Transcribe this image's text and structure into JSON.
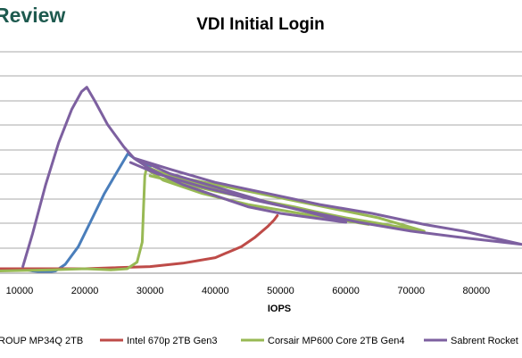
{
  "header": {
    "brand_text": "Review",
    "title": "VDI Initial Login"
  },
  "chart_data": {
    "type": "line",
    "title": "VDI Initial Login",
    "xlabel": "IOPS",
    "ylabel": "",
    "x_ticks": [
      "10000",
      "20000",
      "30000",
      "40000",
      "50000",
      "60000",
      "70000",
      "80000"
    ],
    "xlim": [
      7000,
      87000
    ],
    "ylim": [
      0,
      1
    ],
    "grid": true,
    "legend_position": "bottom",
    "series": [
      {
        "name": "ROUP MP34Q 2TB",
        "color": "#4a7ebb",
        "points": [
          [
            7000,
            0.02
          ],
          [
            10000,
            0.02
          ],
          [
            12000,
            0.01
          ],
          [
            14000,
            0.005
          ],
          [
            15500,
            0.01
          ],
          [
            17000,
            0.04
          ],
          [
            19000,
            0.12
          ],
          [
            21000,
            0.24
          ],
          [
            23000,
            0.36
          ],
          [
            25000,
            0.46
          ],
          [
            26600,
            0.54
          ],
          [
            28000,
            0.51
          ],
          [
            30000,
            0.48
          ]
        ]
      },
      {
        "name": "Intel 670p 2TB Gen3",
        "color": "#be4b48",
        "points": [
          [
            7000,
            0.02
          ],
          [
            10000,
            0.02
          ],
          [
            15000,
            0.02
          ],
          [
            20000,
            0.02
          ],
          [
            25000,
            0.025
          ],
          [
            30000,
            0.03
          ],
          [
            35000,
            0.045
          ],
          [
            40000,
            0.07
          ],
          [
            44000,
            0.12
          ],
          [
            46000,
            0.16
          ],
          [
            48000,
            0.21
          ],
          [
            49000,
            0.24
          ],
          [
            49500,
            0.26
          ]
        ]
      },
      {
        "name": "Corsair MP600 Core 2TB Gen4",
        "color": "#98b954",
        "points": [
          [
            7000,
            0.01
          ],
          [
            15000,
            0.015
          ],
          [
            20000,
            0.02
          ],
          [
            24000,
            0.015
          ],
          [
            26500,
            0.02
          ],
          [
            28000,
            0.05
          ],
          [
            28800,
            0.14
          ],
          [
            29000,
            0.3
          ],
          [
            29200,
            0.44
          ],
          [
            29500,
            0.48
          ],
          [
            32000,
            0.45
          ],
          [
            38000,
            0.4
          ],
          [
            45000,
            0.34
          ],
          [
            52000,
            0.3
          ],
          [
            58000,
            0.26
          ],
          [
            63500,
            0.22
          ],
          [
            55000,
            0.26
          ],
          [
            45000,
            0.31
          ],
          [
            38000,
            0.36
          ],
          [
            32000,
            0.42
          ],
          [
            29500,
            0.47
          ],
          [
            35000,
            0.43
          ],
          [
            45000,
            0.37
          ],
          [
            55000,
            0.31
          ],
          [
            65000,
            0.25
          ],
          [
            72000,
            0.19
          ],
          [
            60000,
            0.25
          ],
          [
            50000,
            0.31
          ],
          [
            40000,
            0.37
          ],
          [
            30000,
            0.44
          ]
        ]
      },
      {
        "name": "Sabrent Rocket",
        "color": "#7d60a0",
        "points": [
          [
            10500,
            0.03
          ],
          [
            12000,
            0.18
          ],
          [
            14000,
            0.4
          ],
          [
            16000,
            0.59
          ],
          [
            18000,
            0.74
          ],
          [
            19500,
            0.82
          ],
          [
            20300,
            0.84
          ],
          [
            21500,
            0.78
          ],
          [
            23500,
            0.67
          ],
          [
            26000,
            0.57
          ],
          [
            27500,
            0.52
          ],
          [
            30000,
            0.47
          ],
          [
            35000,
            0.4
          ],
          [
            40000,
            0.35
          ],
          [
            45000,
            0.3
          ],
          [
            50000,
            0.27
          ],
          [
            55000,
            0.25
          ],
          [
            60000,
            0.23
          ],
          [
            55000,
            0.27
          ],
          [
            48000,
            0.32
          ],
          [
            40000,
            0.39
          ],
          [
            33000,
            0.45
          ],
          [
            28500,
            0.51
          ],
          [
            27500,
            0.52
          ],
          [
            33000,
            0.47
          ],
          [
            40000,
            0.41
          ],
          [
            48000,
            0.36
          ],
          [
            56000,
            0.31
          ],
          [
            64000,
            0.27
          ],
          [
            72000,
            0.22
          ],
          [
            78000,
            0.19
          ],
          [
            87000,
            0.13
          ],
          [
            78000,
            0.16
          ],
          [
            70000,
            0.19
          ],
          [
            62000,
            0.23
          ],
          [
            54000,
            0.28
          ],
          [
            46000,
            0.33
          ],
          [
            38000,
            0.39
          ],
          [
            31000,
            0.45
          ],
          [
            27000,
            0.5
          ]
        ]
      }
    ]
  },
  "colors": {
    "brand": "#1e5a4f",
    "grid": "#a8a8a8",
    "axis": "#8c8c8c"
  }
}
